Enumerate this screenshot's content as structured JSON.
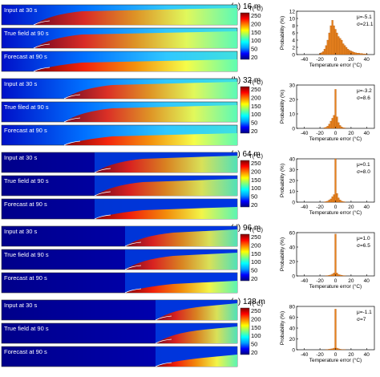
{
  "colormap": {
    "title": "T(°C)",
    "ticks": [
      "250",
      "200",
      "150",
      "100",
      "50",
      "20"
    ],
    "stops": [
      "#00007f",
      "#0000ff",
      "#00a0ff",
      "#00ffff",
      "#7fff7f",
      "#ffff00",
      "#ff8000",
      "#ff0000",
      "#7f0000"
    ]
  },
  "histogram_color": "#e8821e",
  "xlabel": "Temperature error (°C)",
  "ylabel": "Probability (%)",
  "xticks": [
    "-40",
    "-20",
    "0",
    "20",
    "40"
  ],
  "panels": [
    {
      "label": "(a) 16 m",
      "fields": [
        "Input at 30 s",
        "True field at 90 s",
        "Forecast at 90 s"
      ],
      "stats": [
        "μ=-5.1",
        "σ=21.1"
      ],
      "yticks": [
        "0",
        "2",
        "4",
        "6",
        "8",
        "10",
        "12"
      ],
      "chart_data": {
        "type": "bar",
        "xlim": [
          -50,
          50
        ],
        "ylim": [
          0,
          12
        ],
        "x": [
          -20,
          -18,
          -16,
          -14,
          -12,
          -10,
          -8,
          -6,
          -4,
          -2,
          0,
          2,
          4,
          6,
          8,
          10,
          12,
          14,
          16,
          18,
          20,
          22,
          24,
          26,
          28,
          30,
          32,
          34,
          36,
          38,
          40
        ],
        "values": [
          0.3,
          0.5,
          0.8,
          1.5,
          2.5,
          4,
          6,
          8,
          9.5,
          8,
          7,
          6,
          5,
          4.5,
          4,
          3,
          2.5,
          2,
          1.5,
          1.2,
          1,
          0.8,
          0.6,
          0.5,
          0.4,
          0.4,
          0.3,
          0.3,
          0.2,
          0.2,
          0.2
        ]
      }
    },
    {
      "label": "(b) 32 m",
      "fields": [
        "Input at 30 s",
        "True filed at 90 s",
        "Forecast at 90 s"
      ],
      "stats": [
        "μ=-3.2",
        "σ=8.6"
      ],
      "yticks": [
        "0",
        "10",
        "20",
        "30"
      ],
      "chart_data": {
        "type": "bar",
        "xlim": [
          -50,
          50
        ],
        "ylim": [
          0,
          30
        ],
        "x": [
          -14,
          -12,
          -10,
          -8,
          -6,
          -4,
          -2,
          0,
          2,
          4,
          6,
          8,
          10,
          12
        ],
        "values": [
          0.5,
          0.8,
          1.5,
          3,
          5,
          7,
          9,
          27,
          8,
          4,
          2,
          1,
          0.5,
          0.3
        ]
      }
    },
    {
      "label": "(c) 64 m",
      "fields": [
        "Input at 30 s",
        "True field at 90 s",
        "Forecast at 90 s"
      ],
      "stats": [
        "μ=0.1",
        "σ=8.0"
      ],
      "yticks": [
        "0",
        "10",
        "20",
        "30",
        "40"
      ],
      "chart_data": {
        "type": "bar",
        "xlim": [
          -50,
          50
        ],
        "ylim": [
          0,
          40
        ],
        "x": [
          -14,
          -12,
          -10,
          -8,
          -6,
          -4,
          -2,
          0,
          2,
          4,
          6,
          8,
          10,
          12
        ],
        "values": [
          0.3,
          0.5,
          1,
          2,
          3,
          5,
          7,
          40,
          8,
          4,
          2,
          1,
          0.5,
          0.3
        ]
      }
    },
    {
      "label": "(d) 96 m",
      "fields": [
        "Input at 30 s",
        "True field at 90 s",
        "Forecast at 90 s"
      ],
      "stats": [
        "μ=1.0",
        "σ=6.5"
      ],
      "yticks": [
        "0",
        "20",
        "40",
        "60"
      ],
      "chart_data": {
        "type": "bar",
        "xlim": [
          -50,
          50
        ],
        "ylim": [
          0,
          60
        ],
        "x": [
          -12,
          -10,
          -8,
          -6,
          -4,
          -2,
          0,
          2,
          4,
          6,
          8,
          10,
          12
        ],
        "values": [
          0.3,
          0.5,
          1,
          1.5,
          2.5,
          4,
          58,
          4,
          2,
          1.5,
          1,
          0.5,
          0.3
        ]
      }
    },
    {
      "label": "(e) 128 m",
      "fields": [
        "Input at 30 s",
        "True field at 90 s",
        "Forecast at 90 s"
      ],
      "stats": [
        "μ=-1.1",
        "σ=7"
      ],
      "yticks": [
        "0",
        "20",
        "40",
        "60",
        "80"
      ],
      "chart_data": {
        "type": "bar",
        "xlim": [
          -50,
          50
        ],
        "ylim": [
          0,
          80
        ],
        "x": [
          -12,
          -10,
          -8,
          -6,
          -4,
          -2,
          0,
          2,
          4,
          6,
          8,
          10,
          12
        ],
        "values": [
          0.3,
          0.5,
          1,
          1.5,
          2,
          3,
          75,
          3,
          2,
          1,
          0.5,
          0.3,
          0.2
        ]
      }
    }
  ]
}
